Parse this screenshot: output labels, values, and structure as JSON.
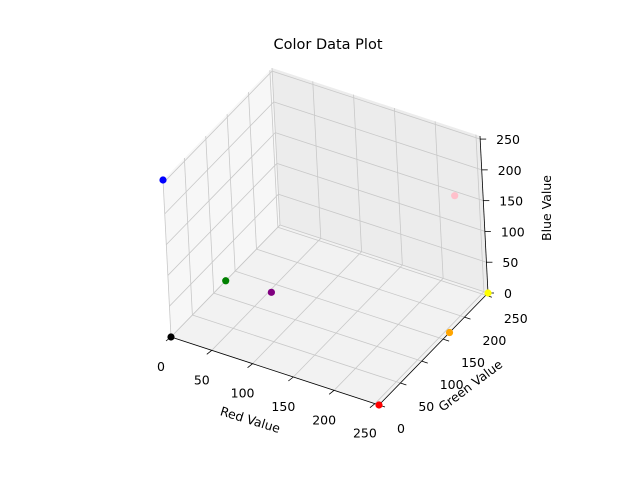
{
  "chart_data": {
    "type": "scatter",
    "dimensions": 3,
    "title": "Color Data Plot",
    "xlabel": "Red Value",
    "ylabel": "Green Value",
    "zlabel": "Blue Value",
    "xlim": [
      0,
      255
    ],
    "ylim": [
      0,
      255
    ],
    "zlim": [
      0,
      255
    ],
    "xticks": [
      "0",
      "50",
      "100",
      "150",
      "200",
      "250"
    ],
    "yticks": [
      "0",
      "50",
      "100",
      "150",
      "200",
      "250"
    ],
    "zticks": [
      "0",
      "50",
      "100",
      "150",
      "200",
      "250"
    ],
    "grid": true,
    "points": [
      {
        "x": 255,
        "y": 0,
        "z": 0,
        "color": "#ff0000"
      },
      {
        "x": 0,
        "y": 128,
        "z": 0,
        "color": "#008000"
      },
      {
        "x": 0,
        "y": 0,
        "z": 255,
        "color": "#0000ff"
      },
      {
        "x": 255,
        "y": 255,
        "z": 0,
        "color": "#ffff00"
      },
      {
        "x": 128,
        "y": 0,
        "z": 128,
        "color": "#800080"
      },
      {
        "x": 255,
        "y": 165,
        "z": 0,
        "color": "#ffa500"
      },
      {
        "x": 255,
        "y": 192,
        "z": 203,
        "color": "#ffc0cb"
      },
      {
        "x": 0,
        "y": 0,
        "z": 0,
        "color": "#000000"
      }
    ]
  }
}
